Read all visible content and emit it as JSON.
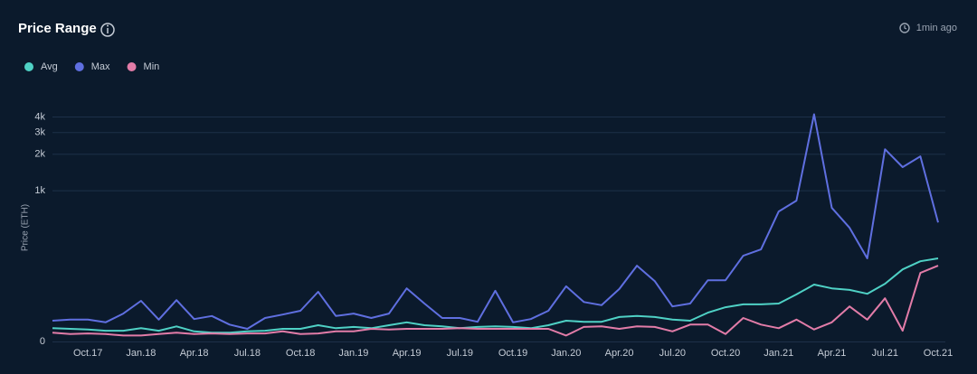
{
  "chart_data": {
    "type": "line",
    "title": "Price Range",
    "updated": "1min ago",
    "ylabel": "Price (ETH)",
    "yscale": "symlog",
    "ylim": [
      0,
      5000
    ],
    "yticks": [
      0,
      {
        "value": 1000,
        "label": "1k"
      },
      {
        "value": 2000,
        "label": "2k"
      },
      {
        "value": 3000,
        "label": "3k"
      },
      {
        "value": 4000,
        "label": "4k"
      }
    ],
    "grid": true,
    "legend": "top-left",
    "categories": [
      null,
      null,
      "Oct.17",
      null,
      null,
      "Jan.18",
      null,
      null,
      "Apr.18",
      null,
      null,
      "Jul.18",
      null,
      null,
      "Oct.18",
      null,
      null,
      "Jan.19",
      null,
      null,
      "Apr.19",
      null,
      null,
      "Jul.19",
      null,
      null,
      "Oct.19",
      null,
      null,
      "Jan.20",
      null,
      null,
      "Apr.20",
      null,
      null,
      "Jul.20",
      null,
      null,
      "Oct.20",
      null,
      null,
      "Jan.21",
      null,
      null,
      "Apr.21",
      null,
      null,
      "Jul.21",
      null,
      null,
      "Oct.21"
    ],
    "series": [
      {
        "name": "Avg",
        "color": "#4fd1c5",
        "values": [
          19,
          18,
          17,
          15,
          15,
          19,
          15,
          22,
          14,
          12,
          12,
          14,
          15,
          18,
          18,
          24,
          19,
          21,
          19,
          24,
          29,
          24,
          22,
          19,
          21,
          22,
          21,
          19,
          24,
          32,
          30,
          30,
          39,
          41,
          39,
          34,
          32,
          48,
          60,
          67,
          67,
          69,
          94,
          126,
          113,
          108,
          96,
          129,
          188,
          229,
          245
        ]
      },
      {
        "name": "Max",
        "color": "#5f6fe0",
        "values": [
          32,
          34,
          34,
          29,
          46,
          76,
          34,
          78,
          35,
          41,
          25,
          18,
          37,
          44,
          52,
          102,
          41,
          46,
          37,
          46,
          113,
          69,
          37,
          37,
          30,
          105,
          29,
          35,
          52,
          120,
          73,
          65,
          111,
          206,
          139,
          62,
          69,
          142,
          142,
          260,
          300,
          665,
          825,
          4200,
          715,
          478,
          245,
          2200,
          1570,
          1925,
          534
        ]
      },
      {
        "name": "Min",
        "color": "#e27ca8",
        "values": [
          12,
          10,
          11,
          10,
          8,
          8,
          10,
          12,
          10,
          11,
          10,
          11,
          11,
          14,
          10,
          11,
          14,
          14,
          18,
          17,
          18,
          18,
          18,
          19,
          18,
          18,
          18,
          18,
          18,
          8,
          21,
          22,
          18,
          22,
          21,
          14,
          25,
          25,
          10,
          37,
          25,
          19,
          34,
          17,
          29,
          62,
          34,
          83,
          15,
          172,
          206
        ]
      }
    ]
  }
}
